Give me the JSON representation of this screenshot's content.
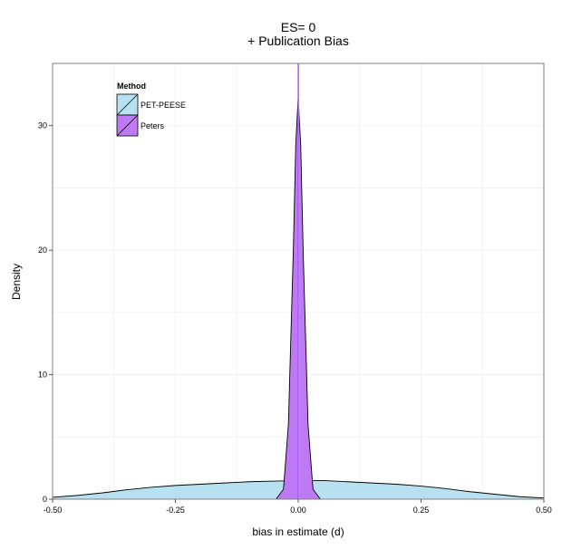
{
  "chart_data": {
    "type": "area",
    "title": [
      "ES= 0",
      "+ Publication Bias"
    ],
    "xlabel": "bias in estimate (d)",
    "ylabel": "Density",
    "xlim": [
      -0.5,
      0.5
    ],
    "ylim": [
      0,
      35
    ],
    "x_ticks": [
      -0.5,
      -0.25,
      0,
      0.25,
      0.5
    ],
    "x_tick_labels": [
      "-0.50",
      "-0.25",
      "0.00",
      "0.25",
      "0.50"
    ],
    "y_ticks": [
      0,
      10,
      20,
      30
    ],
    "y_tick_labels": [
      "0",
      "10",
      "20",
      "30"
    ],
    "grid": true,
    "legend": {
      "title": "Method",
      "position": "top-left",
      "entries": [
        "PET-PEESE",
        "Peters"
      ]
    },
    "series": [
      {
        "name": "PET-PEESE",
        "color": "#b7e0f0",
        "mean_line_x": 0.001,
        "mean_line_color": "#8fd3ee",
        "x": [
          -0.5,
          -0.45,
          -0.4,
          -0.35,
          -0.3,
          -0.25,
          -0.2,
          -0.15,
          -0.1,
          -0.05,
          0,
          0.05,
          0.1,
          0.15,
          0.2,
          0.25,
          0.3,
          0.35,
          0.4,
          0.45,
          0.5
        ],
        "y": [
          0.15,
          0.3,
          0.5,
          0.75,
          0.95,
          1.1,
          1.2,
          1.3,
          1.4,
          1.45,
          1.5,
          1.5,
          1.4,
          1.3,
          1.2,
          1.05,
          0.85,
          0.6,
          0.4,
          0.2,
          0.1
        ]
      },
      {
        "name": "Peters",
        "color": "#bf79f5",
        "mean_line_x": 0.0,
        "mean_line_color": "#a64af5",
        "x": [
          -0.045,
          -0.03,
          -0.02,
          -0.01,
          -0.005,
          0,
          0.005,
          0.01,
          0.02,
          0.03,
          0.045
        ],
        "y": [
          0,
          0.8,
          6,
          20,
          28.5,
          32.3,
          28.5,
          20,
          6,
          0.8,
          0
        ]
      }
    ]
  }
}
